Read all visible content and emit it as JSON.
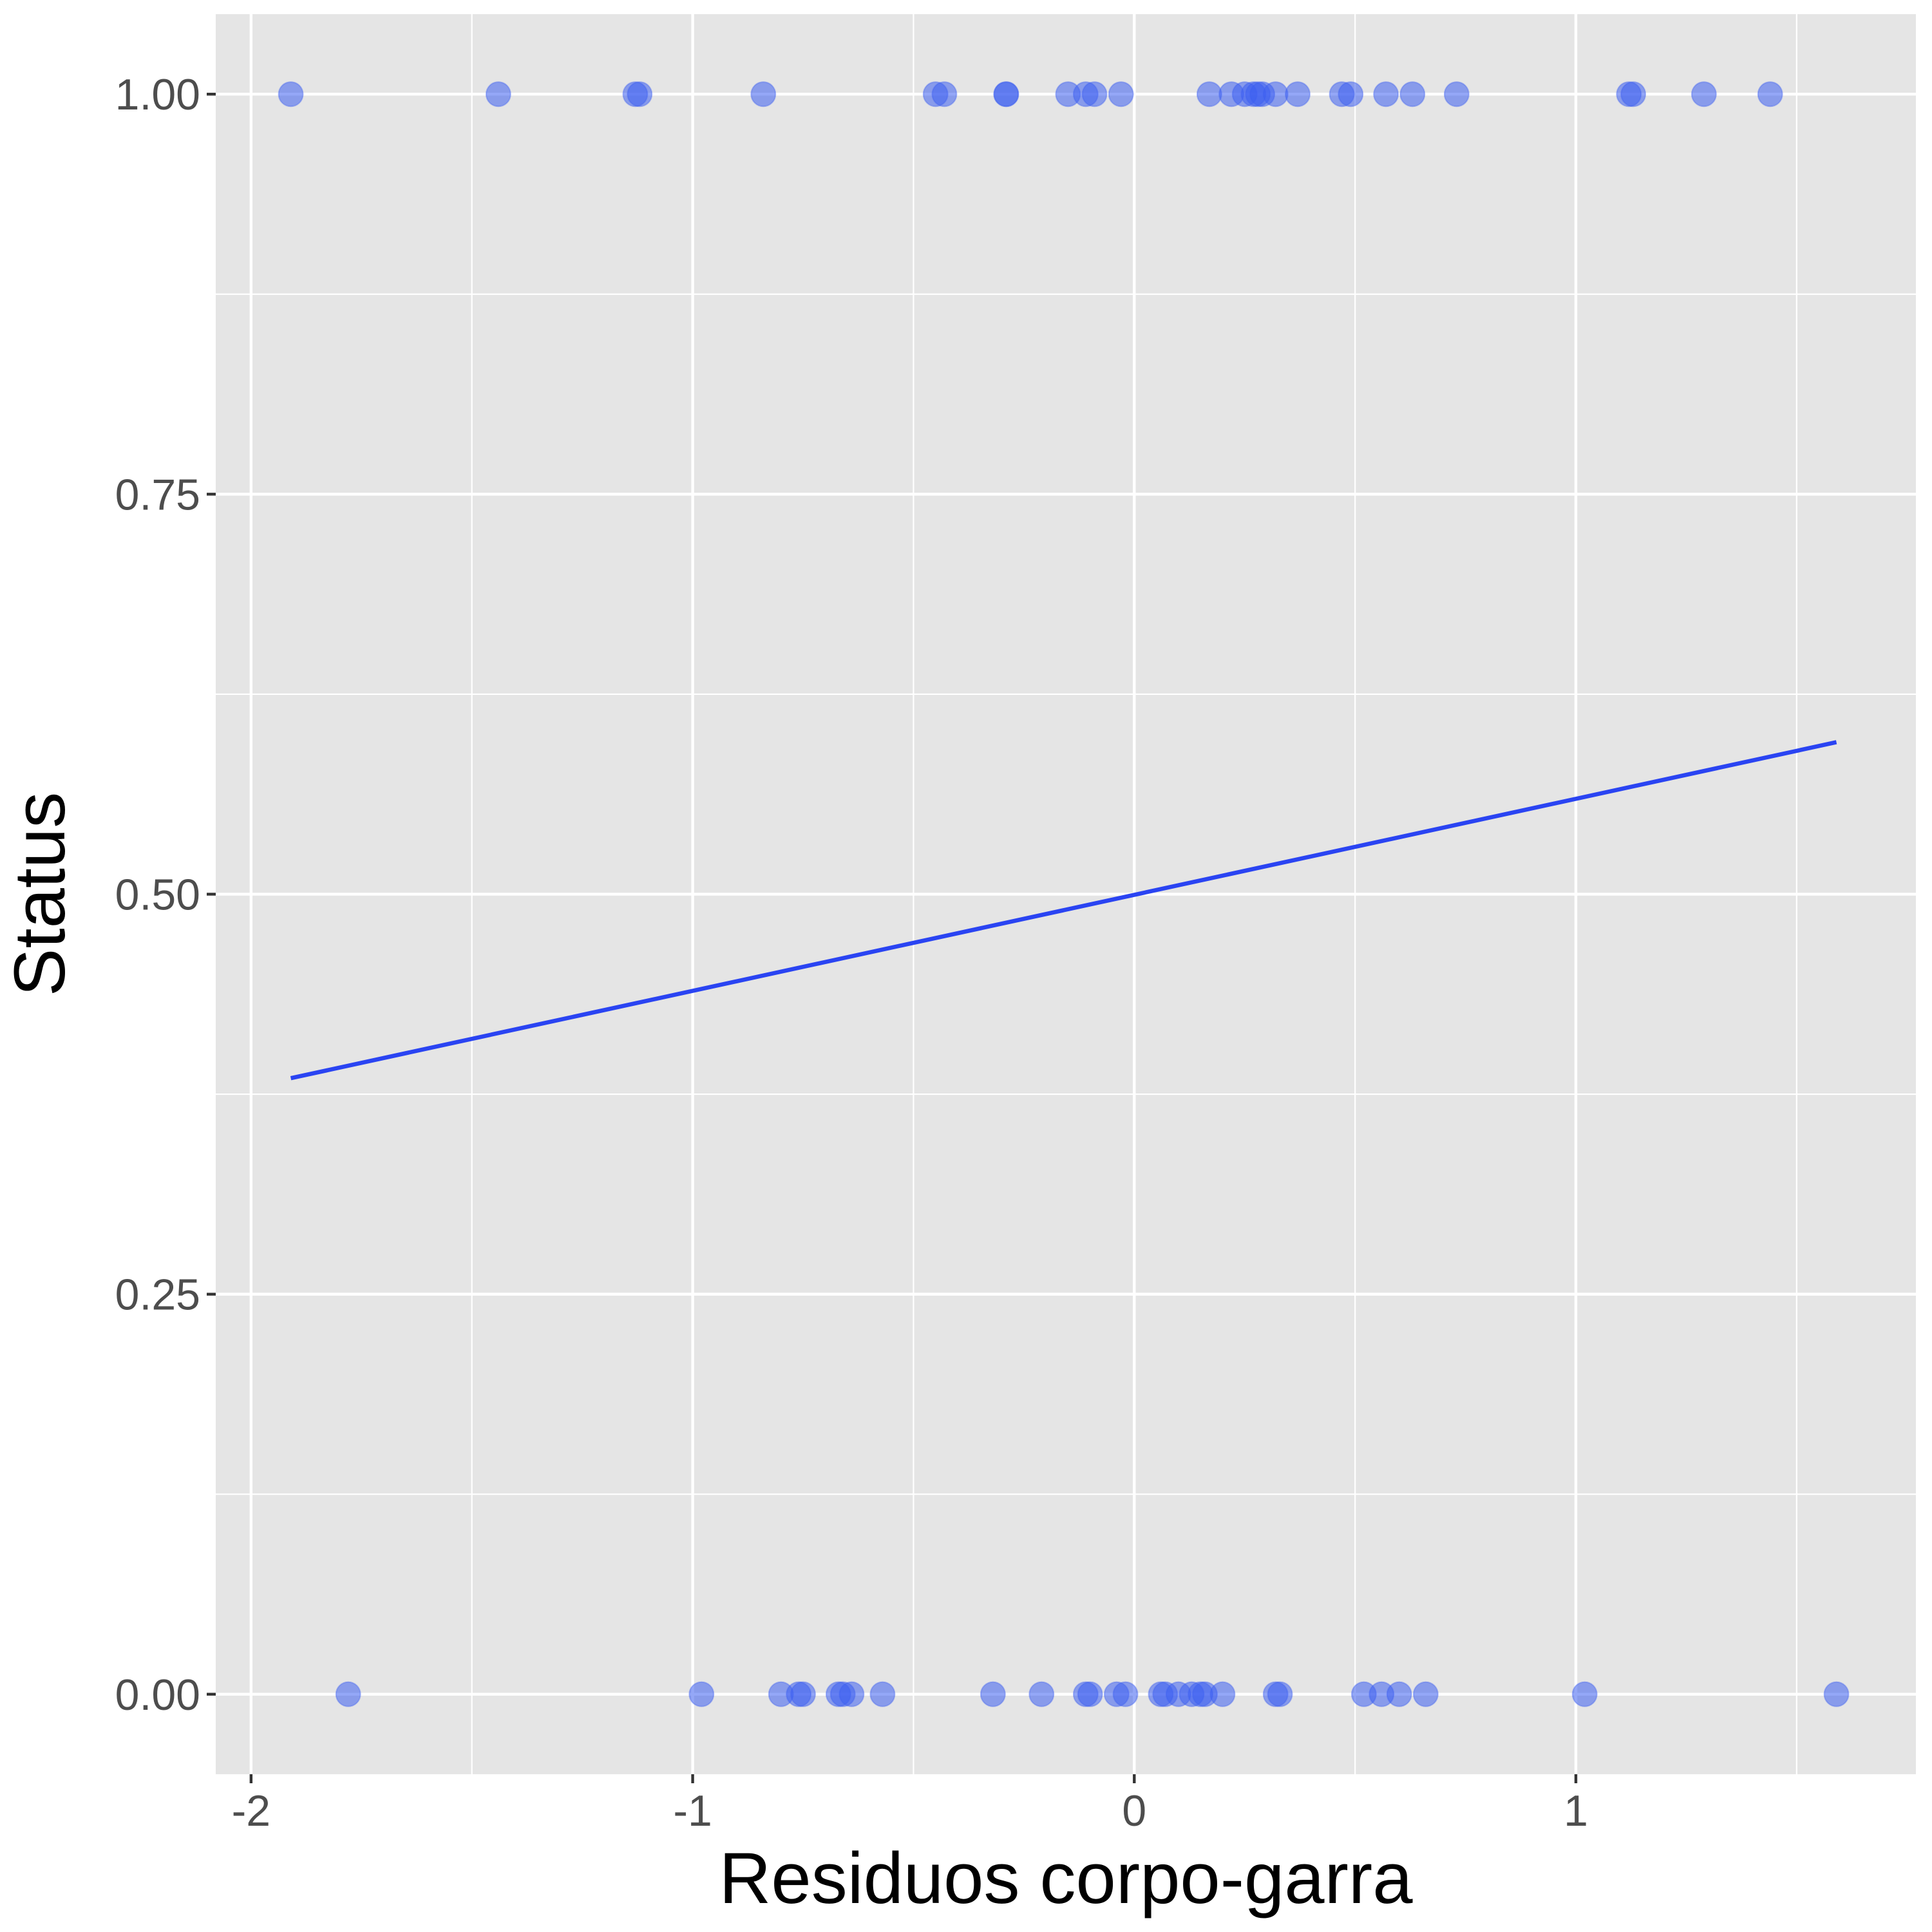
{
  "chart_data": {
    "type": "scatter",
    "title": "",
    "xlabel": "Residuos corpo-garra",
    "ylabel": "Status",
    "xlim": [
      -2.08,
      1.77
    ],
    "ylim": [
      -0.05,
      1.05
    ],
    "x_ticks": [
      {
        "value": -2,
        "label": "-2"
      },
      {
        "value": -1,
        "label": "-1"
      },
      {
        "value": 0,
        "label": "0"
      },
      {
        "value": 1,
        "label": "1"
      }
    ],
    "y_ticks": [
      {
        "value": 0.0,
        "label": "0.00"
      },
      {
        "value": 0.25,
        "label": "0.25"
      },
      {
        "value": 0.5,
        "label": "0.50"
      },
      {
        "value": 0.75,
        "label": "0.75"
      },
      {
        "value": 1.0,
        "label": "1.00"
      }
    ],
    "grid": true,
    "colors": {
      "panel": "#e5e5e5",
      "grid": "#ffffff",
      "points": "#3d5ef0",
      "fit_line": "#2a44f2",
      "tick_text": "#4d4d4d"
    },
    "points": {
      "y1_x": [
        -1.91,
        -1.44,
        -1.13,
        -1.12,
        -0.84,
        -0.45,
        -0.43,
        -0.29,
        -0.29,
        -0.15,
        -0.11,
        -0.09,
        -0.03,
        0.17,
        0.22,
        0.25,
        0.27,
        0.28,
        0.29,
        0.32,
        0.37,
        0.47,
        0.49,
        0.57,
        0.63,
        0.73,
        1.12,
        1.13,
        1.29,
        1.44
      ],
      "y0_x": [
        -1.78,
        -0.98,
        -0.8,
        -0.76,
        -0.75,
        -0.67,
        -0.66,
        -0.64,
        -0.57,
        -0.32,
        -0.21,
        -0.11,
        -0.1,
        -0.04,
        -0.02,
        0.06,
        0.07,
        0.1,
        0.13,
        0.15,
        0.16,
        0.2,
        0.32,
        0.33,
        0.52,
        0.56,
        0.6,
        0.66,
        1.02,
        1.59
      ]
    },
    "fit_line": {
      "x": [
        -1.91,
        1.59
      ],
      "y": [
        0.385,
        0.595
      ]
    }
  }
}
